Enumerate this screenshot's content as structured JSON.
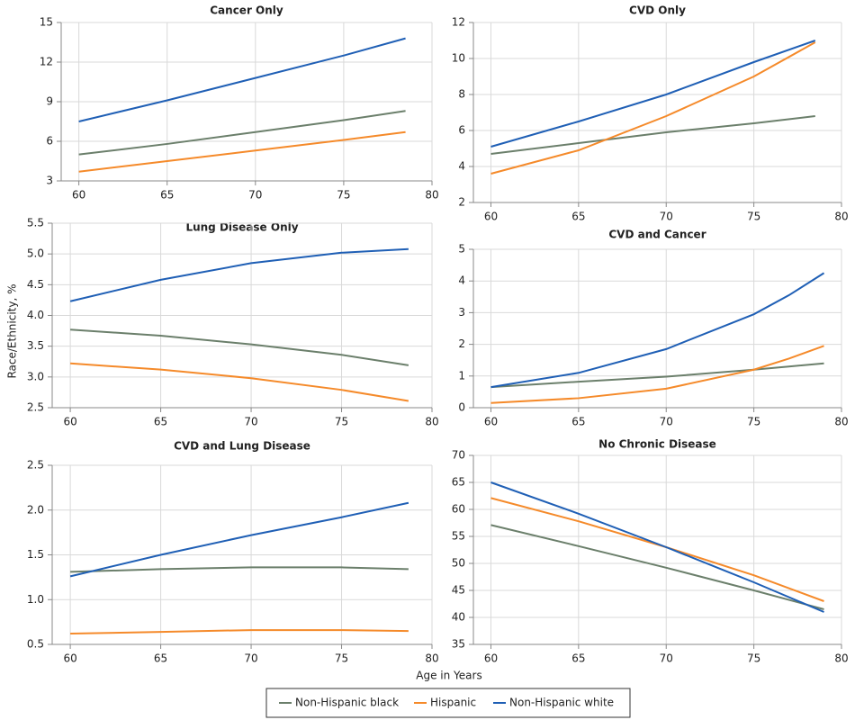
{
  "chart_data": [
    {
      "type": "line",
      "title": "Cancer Only",
      "x": [
        60,
        65,
        70,
        75,
        78.5
      ],
      "xlim": [
        59,
        80
      ],
      "xticks": [
        60,
        65,
        70,
        75,
        80
      ],
      "ylim": [
        3,
        15
      ],
      "yticks": [
        3,
        6,
        9,
        12,
        15
      ],
      "grid": true,
      "series": [
        {
          "name": "Non-Hispanic black",
          "color": "#6b7f6b",
          "values": [
            5.0,
            5.8,
            6.7,
            7.6,
            8.3
          ]
        },
        {
          "name": "Hispanic",
          "color": "#f58a2a",
          "values": [
            3.7,
            4.5,
            5.3,
            6.1,
            6.7
          ]
        },
        {
          "name": "Non-Hispanic white",
          "color": "#1f5fb5",
          "values": [
            7.5,
            9.1,
            10.8,
            12.5,
            13.8
          ]
        }
      ]
    },
    {
      "type": "line",
      "title": "CVD Only",
      "x": [
        60,
        65,
        70,
        75,
        78.5
      ],
      "xlim": [
        59,
        80
      ],
      "xticks": [
        60,
        65,
        70,
        75,
        80
      ],
      "ylim": [
        2,
        12
      ],
      "yticks": [
        2,
        4,
        6,
        8,
        10,
        12
      ],
      "grid": true,
      "series": [
        {
          "name": "Non-Hispanic black",
          "color": "#6b7f6b",
          "values": [
            4.7,
            5.3,
            5.9,
            6.4,
            6.8
          ]
        },
        {
          "name": "Hispanic",
          "color": "#f58a2a",
          "values": [
            3.6,
            4.9,
            6.8,
            9.0,
            10.9
          ]
        },
        {
          "name": "Non-Hispanic white",
          "color": "#1f5fb5",
          "values": [
            5.1,
            6.5,
            8.0,
            9.8,
            11.0
          ]
        }
      ]
    },
    {
      "type": "line",
      "title": "Lung Disease Only",
      "x": [
        60,
        65,
        70,
        75,
        78.7
      ],
      "xlim": [
        59,
        80
      ],
      "xticks": [
        60,
        65,
        70,
        75,
        80
      ],
      "ylim": [
        2.5,
        5.5
      ],
      "yticks": [
        2.5,
        {
          "value": 3,
          "label": "3.0"
        },
        3.5,
        {
          "value": 4,
          "label": "4.0"
        },
        4.5,
        {
          "value": 5,
          "label": "5.0"
        },
        5.5
      ],
      "grid": true,
      "series": [
        {
          "name": "Non-Hispanic black",
          "color": "#6b7f6b",
          "values": [
            3.77,
            3.67,
            3.53,
            3.36,
            3.19
          ]
        },
        {
          "name": "Hispanic",
          "color": "#f58a2a",
          "values": [
            3.22,
            3.12,
            2.98,
            2.79,
            2.61
          ]
        },
        {
          "name": "Non-Hispanic white",
          "color": "#1f5fb5",
          "values": [
            4.23,
            4.58,
            4.85,
            5.02,
            5.08
          ]
        }
      ]
    },
    {
      "type": "line",
      "title": "CVD and Cancer",
      "x": [
        60,
        65,
        70,
        75,
        77,
        79
      ],
      "xlim": [
        59,
        80
      ],
      "xticks": [
        60,
        65,
        70,
        75,
        80
      ],
      "ylim": [
        0,
        5
      ],
      "yticks": [
        0,
        1,
        2,
        3,
        4,
        5
      ],
      "grid": true,
      "series": [
        {
          "name": "Non-Hispanic black",
          "color": "#6b7f6b",
          "values": [
            0.65,
            0.82,
            0.98,
            1.2,
            1.3,
            1.4
          ]
        },
        {
          "name": "Hispanic",
          "color": "#f58a2a",
          "values": [
            0.15,
            0.3,
            0.6,
            1.2,
            1.55,
            1.95
          ]
        },
        {
          "name": "Non-Hispanic white",
          "color": "#1f5fb5",
          "values": [
            0.65,
            1.1,
            1.85,
            2.95,
            3.55,
            4.25
          ]
        }
      ]
    },
    {
      "type": "line",
      "title": "CVD and Lung Disease",
      "x": [
        60,
        65,
        70,
        75,
        78.7
      ],
      "xlim": [
        59,
        80
      ],
      "xticks": [
        60,
        65,
        70,
        75,
        80
      ],
      "ylim": [
        0.5,
        2.5
      ],
      "yticks": [
        0.5,
        {
          "value": 1,
          "label": "1.0"
        },
        1.5,
        {
          "value": 2,
          "label": "2.0"
        },
        2.5
      ],
      "grid": true,
      "series": [
        {
          "name": "Non-Hispanic black",
          "color": "#6b7f6b",
          "values": [
            1.31,
            1.34,
            1.36,
            1.36,
            1.34
          ]
        },
        {
          "name": "Hispanic",
          "color": "#f58a2a",
          "values": [
            0.62,
            0.64,
            0.66,
            0.66,
            0.65
          ]
        },
        {
          "name": "Non-Hispanic white",
          "color": "#1f5fb5",
          "values": [
            1.26,
            1.5,
            1.72,
            1.92,
            2.08
          ]
        }
      ]
    },
    {
      "type": "line",
      "title": "No Chronic Disease",
      "x": [
        60,
        65,
        70,
        75,
        79
      ],
      "xlim": [
        59,
        80
      ],
      "xticks": [
        60,
        65,
        70,
        75,
        80
      ],
      "ylim": [
        35,
        70
      ],
      "yticks": [
        35,
        40,
        45,
        50,
        55,
        60,
        65,
        70
      ],
      "grid": true,
      "series": [
        {
          "name": "Non-Hispanic black",
          "color": "#6b7f6b",
          "values": [
            57.1,
            53.2,
            49.2,
            45.0,
            41.5
          ]
        },
        {
          "name": "Hispanic",
          "color": "#f58a2a",
          "values": [
            62.1,
            57.8,
            53.0,
            47.8,
            43.0
          ]
        },
        {
          "name": "Non-Hispanic white",
          "color": "#1f5fb5",
          "values": [
            65.0,
            59.2,
            53.0,
            46.5,
            41.0
          ]
        }
      ]
    }
  ],
  "xlabel": "Age in Years",
  "ylabel": "Race/Ethnicity, %",
  "legend": "bottom"
}
